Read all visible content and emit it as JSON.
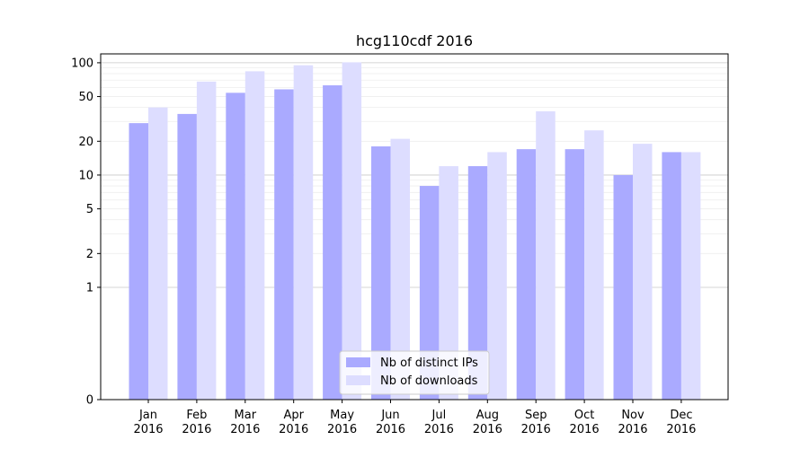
{
  "chart_data": {
    "type": "bar",
    "title": "hcg110cdf 2016",
    "xlabel": "",
    "ylabel": "",
    "y_scale": "symlog",
    "ylim": [
      0,
      120
    ],
    "y_ticks": [
      0,
      1,
      2,
      5,
      10,
      20,
      50,
      100
    ],
    "grid": "horizontal",
    "legend_position": "bottom-center",
    "categories": [
      [
        "Jan",
        "2016"
      ],
      [
        "Feb",
        "2016"
      ],
      [
        "Mar",
        "2016"
      ],
      [
        "Apr",
        "2016"
      ],
      [
        "May",
        "2016"
      ],
      [
        "Jun",
        "2016"
      ],
      [
        "Jul",
        "2016"
      ],
      [
        "Aug",
        "2016"
      ],
      [
        "Sep",
        "2016"
      ],
      [
        "Oct",
        "2016"
      ],
      [
        "Nov",
        "2016"
      ],
      [
        "Dec",
        "2016"
      ]
    ],
    "series": [
      {
        "name": "Nb of distinct IPs",
        "color": "#aaaaff",
        "values": [
          29,
          35,
          54,
          58,
          63,
          18,
          8,
          12,
          17,
          17,
          10,
          16
        ]
      },
      {
        "name": "Nb of downloads",
        "color": "#ddddff",
        "values": [
          40,
          68,
          84,
          95,
          101,
          21,
          12,
          16,
          37,
          25,
          19,
          16
        ]
      }
    ]
  }
}
